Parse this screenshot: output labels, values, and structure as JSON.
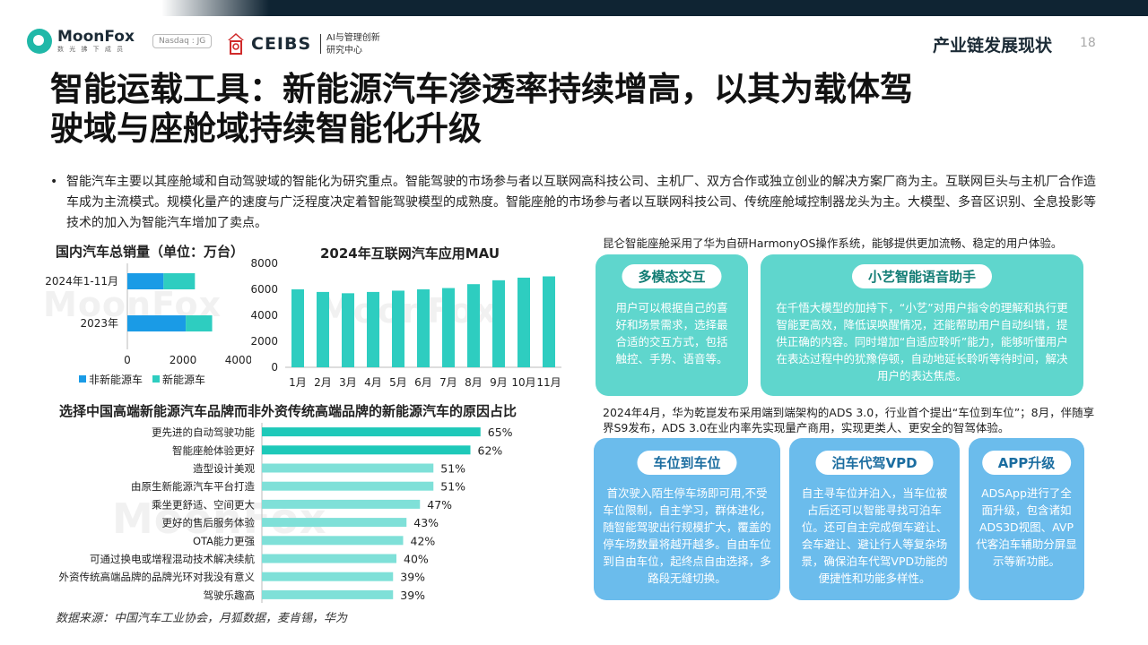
{
  "brand": {
    "moonfox": "MoonFox",
    "moonfox_sub": "数 光 拂 下 成 员",
    "nasdaq": "Nasdaq : JG",
    "ceibs": "CEIBS",
    "ceibs_cn_1": "AI与管理创新",
    "ceibs_cn_2": "研究中心"
  },
  "header": {
    "section": "产业链发展现状",
    "page": "18"
  },
  "title_line1": "智能运载工具：新能源汽车渗透率持续增高，以其为载体驾",
  "title_line2": "驶域与座舱域持续智能化升级",
  "bullet_text": "智能汽车主要以其座舱域和自动驾驶域的智能化为研究重点。智能驾驶的市场参与者以互联网高科技公司、主机厂、双方合作或独立创业的解决方案厂商为主。互联网巨头与主机厂合作造车成为主流模式。规模化量产的速度与广泛程度决定着智能驾驶模型的成熟度。智能座舱的市场参与者以互联网科技公司、传统座舱域控制器龙头为主。大模型、多音区识别、全息投影等技术的加入为智能汽车增加了卖点。",
  "chart_data": [
    {
      "type": "bar",
      "orientation": "horizontal",
      "stacked": true,
      "title": "国内汽车总销量（单位：万台）",
      "categories": [
        "2024年1-11月",
        "2023年"
      ],
      "series": [
        {
          "name": "非新能源车",
          "values": [
            1300,
            2100
          ],
          "color": "#1a9be6"
        },
        {
          "name": "新能源车",
          "values": [
            1130,
            950
          ],
          "color": "#2ecdc0"
        }
      ],
      "xlim": [
        0,
        4000
      ],
      "xticks": [
        "0",
        "2000",
        "4000"
      ],
      "legend": "bottom"
    },
    {
      "type": "bar",
      "title": "2024年互联网汽车应用MAU",
      "categories": [
        "1月",
        "2月",
        "3月",
        "4月",
        "5月",
        "6月",
        "7月",
        "8月",
        "9月",
        "10月",
        "11月"
      ],
      "values": [
        6000,
        5800,
        5700,
        5800,
        5900,
        6000,
        6100,
        6400,
        6700,
        6900,
        7000
      ],
      "ylim": [
        0,
        8000
      ],
      "yticks": [
        "0",
        "2000",
        "4000",
        "6000",
        "8000"
      ],
      "color": "#2ecdc0"
    },
    {
      "type": "bar",
      "orientation": "horizontal",
      "title": "选择中国高端新能源汽车品牌而非外资传统高端品牌的新能源汽车的原因占比",
      "categories": [
        "更先进的自动驾驶功能",
        "智能座舱体验更好",
        "造型设计美观",
        "由原生新能源汽车平台打造",
        "乘坐更舒适、空间更大",
        "更好的售后服务体验",
        "OTA能力更强",
        "可通过换电或增程混动技术解决续航",
        "外资传统高端品牌的品牌光环对我没有意义",
        "驾驶乐趣高"
      ],
      "values": [
        65,
        62,
        51,
        51,
        47,
        43,
        42,
        40,
        39,
        39
      ],
      "labels": [
        "65%",
        "62%",
        "51%",
        "51%",
        "47%",
        "43%",
        "42%",
        "40%",
        "39%",
        "39%"
      ],
      "unit": "%",
      "colors": [
        "#1ec9b9",
        "#1ec9b9",
        "#7fe0d8",
        "#7fe0d8",
        "#7fe0d8",
        "#7fe0d8",
        "#7fe0d8",
        "#7fe0d8",
        "#7fe0d8",
        "#7fe0d8"
      ]
    }
  ],
  "source": "数据来源：中国汽车工业协会，月狐数据，麦肯锡，华为",
  "right": {
    "note1": "昆仑智能座舱采用了华为自研HarmonyOS操作系统，能够提供更加流畅、稳定的用户体验。",
    "panel1": {
      "title": "多模态交互",
      "text": "用户可以根据自己的喜好和场景需求，选择最合适的交互方式，包括触控、手势、语音等。"
    },
    "panel2": {
      "title": "小艺智能语音助手",
      "text": "在千悟大模型的加持下，“小艺”对用户指令的理解和执行更智能更高效，降低误唤醒情况，还能帮助用户自动纠错，提供正确的内容。同时增加“自适应聆听”能力，能够听懂用户在表达过程中的犹豫停顿，自动地延长聆听等待时间，解决用户的表达焦虑。"
    },
    "note2": "2024年4月，华为乾崑发布采用端到端架构的ADS 3.0，行业首个提出“车位到车位”；8月，伴随享界S9发布，ADS 3.0在业内率先实现量产商用，实现更类人、更安全的智驾体验。",
    "panel3": {
      "title": "车位到车位",
      "text": "首次驶入陌生停车场即可用,不受车位限制，自主学习，群体进化，随智能驾驶出行规模扩大，覆盖的停车场数量将越开越多。自由车位到自由车位，起终点自由选择，多路段无缝切换。"
    },
    "panel4": {
      "title": "泊车代驾VPD",
      "text": "自主寻车位并泊入，当车位被占后还可以智能寻找可泊车位。还可自主完成倒车避让、会车避让、避让行人等复杂场景，确保泊车代驾VPD功能的便捷性和功能多样性。"
    },
    "panel5": {
      "title": "APP升级",
      "text": "ADSApp进行了全面升级，包含诸如ADS3D视图、AVP代客泊车辅助分屏显示等新功能。"
    }
  }
}
